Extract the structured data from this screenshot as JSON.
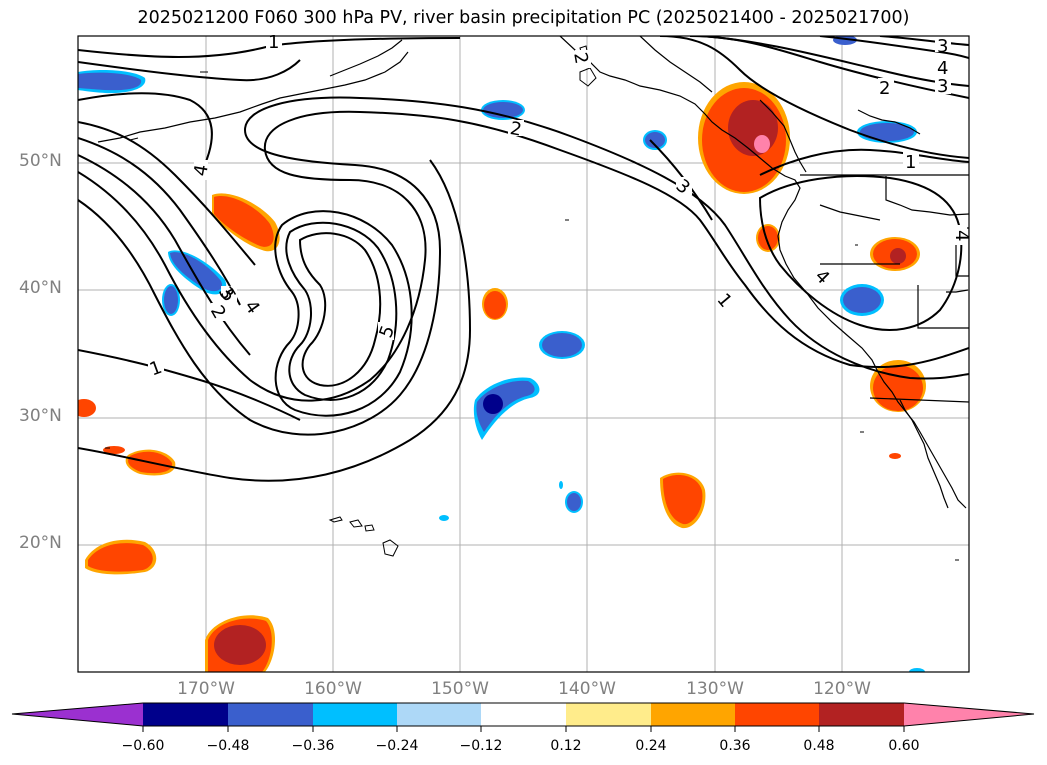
{
  "title": "2025021200 F060 300 hPa PV, river basin precipitation PC (2025021400 - 2025021700)",
  "latitude_labels": [
    "50°N",
    "40°N",
    "30°N",
    "20°N"
  ],
  "longitude_labels": [
    "170°W",
    "160°W",
    "150°W",
    "140°W",
    "130°W",
    "120°W"
  ],
  "contour_labels": [
    "1",
    "2",
    "3",
    "4",
    "5",
    "1",
    "2",
    "3",
    "4",
    "1",
    "2",
    "3",
    "4",
    "4",
    "3",
    "2",
    "1",
    "4",
    "1",
    "5",
    "4"
  ],
  "colorbar": {
    "colors": [
      "#9b30d0",
      "#00008b",
      "#3a5fcd",
      "#00bfff",
      "#add8f7",
      "#ffffff",
      "#ffec8b",
      "#ffa500",
      "#ff4500",
      "#b22222",
      "#ff82ab"
    ],
    "tick_labels": [
      "−0.60",
      "−0.48",
      "−0.36",
      "−0.24",
      "−0.12",
      "0.12",
      "0.24",
      "0.36",
      "0.48",
      "0.60"
    ]
  },
  "colors": {
    "contour": "#000000",
    "grid": "#b0b0b0",
    "axis_label": "#808080"
  }
}
